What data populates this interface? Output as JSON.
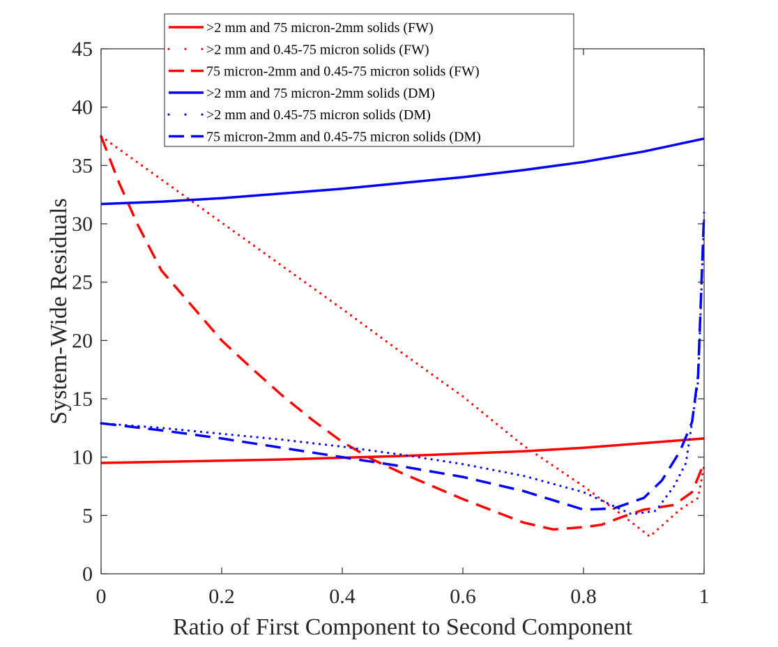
{
  "chart_data": {
    "type": "line",
    "xlabel": "Ratio of First Component to Second Component",
    "ylabel": "System-Wide Residuals",
    "xlim": [
      0,
      1
    ],
    "ylim": [
      0,
      45
    ],
    "xticks": [
      0,
      0.2,
      0.4,
      0.6,
      0.8,
      1
    ],
    "yticks": [
      0,
      5,
      10,
      15,
      20,
      25,
      30,
      35,
      40,
      45
    ],
    "xtick_labels": [
      "0",
      "0.2",
      "0.4",
      "0.6",
      "0.8",
      "1"
    ],
    "ytick_labels": [
      "0",
      "5",
      "10",
      "15",
      "20",
      "25",
      "30",
      "35",
      "40",
      "45"
    ],
    "grid": false,
    "legend_position": "top-center",
    "series": [
      {
        "name": ">2 mm and 75 micron-2mm solids (FW)",
        "color": "#ff0000",
        "style": "solid",
        "x": [
          0,
          0.1,
          0.2,
          0.3,
          0.4,
          0.5,
          0.6,
          0.7,
          0.8,
          0.9,
          1
        ],
        "y": [
          9.5,
          9.6,
          9.7,
          9.8,
          9.95,
          10.1,
          10.3,
          10.5,
          10.8,
          11.2,
          11.6
        ]
      },
      {
        "name": ">2 mm and 0.45-75 micron solids (FW)",
        "color": "#ff0000",
        "style": "dotted",
        "x": [
          0,
          0.1,
          0.2,
          0.3,
          0.4,
          0.5,
          0.6,
          0.7,
          0.8,
          0.86,
          0.91,
          0.96,
          0.99,
          1
        ],
        "y": [
          37.5,
          33.8,
          30.1,
          26.4,
          22.7,
          18.9,
          15.2,
          11.0,
          7.5,
          5.2,
          3.2,
          5.5,
          6.5,
          9.3
        ]
      },
      {
        "name": "75 micron-2mm and 0.45-75 micron solids (FW)",
        "color": "#ff0000",
        "style": "dashed",
        "x": [
          0,
          0.03,
          0.06,
          0.1,
          0.15,
          0.2,
          0.25,
          0.3,
          0.35,
          0.4,
          0.45,
          0.5,
          0.55,
          0.6,
          0.65,
          0.7,
          0.75,
          0.8,
          0.83,
          0.86,
          0.9,
          0.95,
          0.98,
          1
        ],
        "y": [
          37.5,
          33.5,
          30.0,
          26.0,
          23.0,
          20.0,
          17.6,
          15.3,
          13.2,
          11.3,
          9.8,
          8.6,
          7.5,
          6.4,
          5.4,
          4.4,
          3.8,
          4.0,
          4.2,
          4.8,
          5.5,
          5.9,
          7.0,
          9.5
        ]
      },
      {
        "name": ">2 mm and 75 micron-2mm solids (DM)",
        "color": "#0000ff",
        "style": "solid",
        "x": [
          0,
          0.1,
          0.2,
          0.3,
          0.4,
          0.5,
          0.6,
          0.7,
          0.8,
          0.9,
          1
        ],
        "y": [
          31.7,
          31.9,
          32.2,
          32.6,
          33.0,
          33.5,
          34.0,
          34.6,
          35.3,
          36.2,
          37.3
        ]
      },
      {
        "name": ">2 mm and 0.45-75 micron solids (DM)",
        "color": "#0000ff",
        "style": "dotted",
        "x": [
          0,
          0.1,
          0.2,
          0.3,
          0.4,
          0.5,
          0.6,
          0.7,
          0.8,
          0.85,
          0.88,
          0.92,
          0.95,
          0.97,
          0.99,
          1
        ],
        "y": [
          12.9,
          12.5,
          12.0,
          11.5,
          10.9,
          10.2,
          9.4,
          8.4,
          7.0,
          5.8,
          5.1,
          5.4,
          7.5,
          9.5,
          16.5,
          30.5
        ]
      },
      {
        "name": "75 micron-2mm and 0.45-75 micron solids (DM)",
        "color": "#0000ff",
        "style": "dashed",
        "x": [
          0,
          0.1,
          0.2,
          0.3,
          0.4,
          0.5,
          0.6,
          0.7,
          0.75,
          0.8,
          0.85,
          0.9,
          0.93,
          0.96,
          0.98,
          0.99,
          1
        ],
        "y": [
          12.9,
          12.3,
          11.6,
          10.8,
          10.0,
          9.2,
          8.3,
          7.1,
          6.3,
          5.5,
          5.6,
          6.5,
          8.0,
          10.5,
          13.0,
          17.0,
          31.0
        ]
      }
    ]
  }
}
